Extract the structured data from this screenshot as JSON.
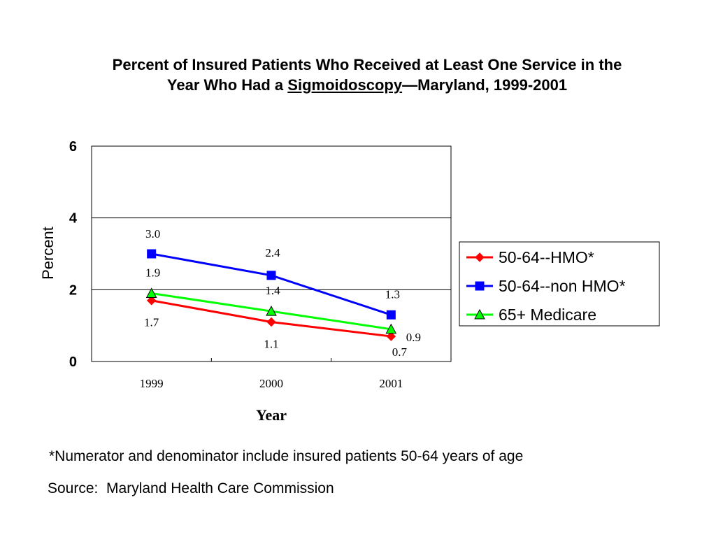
{
  "title": {
    "line1": "Percent of Insured Patients Who Received at Least One Service in the",
    "line2_pre": "Year Who Had a ",
    "line2_underlined": "Sigmoidoscopy",
    "line2_post": "—Maryland, 1999-2001"
  },
  "chart_data": {
    "type": "line",
    "xlabel": "Year",
    "ylabel": "Percent",
    "ylim": [
      0,
      6
    ],
    "yticks": [
      "0",
      "2",
      "4",
      "6"
    ],
    "gridlines": [
      2,
      4
    ],
    "categories": [
      "1999",
      "2000",
      "2001"
    ],
    "legend_position": "right",
    "series": [
      {
        "name": "50-64--HMO*",
        "color": "#ff0000",
        "marker": "diamond",
        "values": [
          1.7,
          1.1,
          0.7
        ],
        "labels": [
          "1.7",
          "1.1",
          "0.7"
        ]
      },
      {
        "name": "50-64--non HMO*",
        "color": "#0000ff",
        "marker": "square",
        "values": [
          3.0,
          2.4,
          1.3
        ],
        "labels": [
          "3.0",
          "2.4",
          "1.3"
        ]
      },
      {
        "name": "65+ Medicare",
        "color": "#00ff00",
        "marker": "triangle",
        "values": [
          1.9,
          1.4,
          0.9
        ],
        "labels": [
          "1.9",
          "1.4",
          "0.9"
        ]
      }
    ]
  },
  "footnote": "*Numerator and denominator include insured patients 50-64 years of age",
  "source": "Source:  Maryland Health Care Commission"
}
